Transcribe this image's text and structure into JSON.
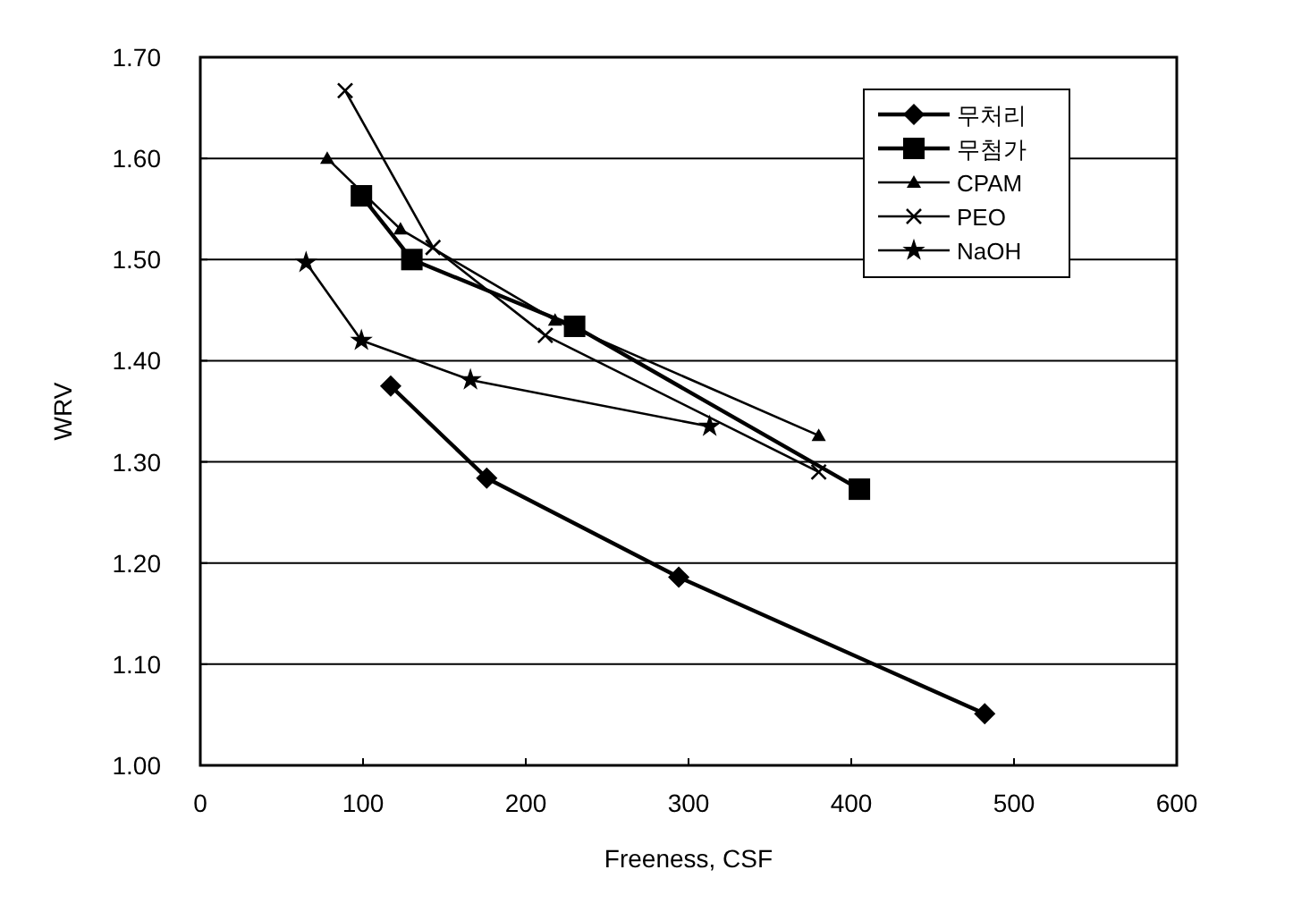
{
  "chart_data": {
    "type": "line",
    "xlabel": "Freeness, CSF",
    "ylabel": "WRV",
    "xlim": [
      0,
      600
    ],
    "xticks": [
      0,
      100,
      200,
      300,
      400,
      500,
      600
    ],
    "ylim": [
      1,
      1.7
    ],
    "yticks": [
      {
        "value": 1,
        "label": "1.00"
      },
      {
        "value": 1.1,
        "label": "1.10"
      },
      {
        "value": 1.2,
        "label": "1.20"
      },
      {
        "value": 1.3,
        "label": "1.30"
      },
      {
        "value": 1.4,
        "label": "1.40"
      },
      {
        "value": 1.5,
        "label": "1.50"
      },
      {
        "value": 1.6,
        "label": "1.60"
      },
      {
        "value": 1.7,
        "label": "1.70"
      }
    ],
    "grid": "y",
    "legend": "top right",
    "series": [
      {
        "name": "무처리",
        "color": "#000000",
        "marker": "diamond",
        "x": [
          117,
          176,
          294,
          482
        ],
        "values": [
          1.375,
          1.284,
          1.186,
          1.051
        ]
      },
      {
        "name": "무첨가",
        "color": "#000000",
        "marker": "square",
        "x": [
          99,
          130,
          230,
          405
        ],
        "values": [
          1.563,
          1.5,
          1.434,
          1.273
        ]
      },
      {
        "name": "CPAM",
        "color": "#000000",
        "marker": "triangle",
        "x": [
          78,
          123,
          218,
          380
        ],
        "values": [
          1.6,
          1.53,
          1.44,
          1.326
        ]
      },
      {
        "name": "PEO",
        "color": "#000000",
        "marker": "cross",
        "x": [
          89,
          143,
          212,
          380
        ],
        "values": [
          1.667,
          1.512,
          1.425,
          1.29
        ]
      },
      {
        "name": "NaOH",
        "color": "#000000",
        "marker": "star",
        "x": [
          65,
          99,
          166,
          313
        ],
        "values": [
          1.497,
          1.42,
          1.381,
          1.335
        ]
      }
    ]
  }
}
